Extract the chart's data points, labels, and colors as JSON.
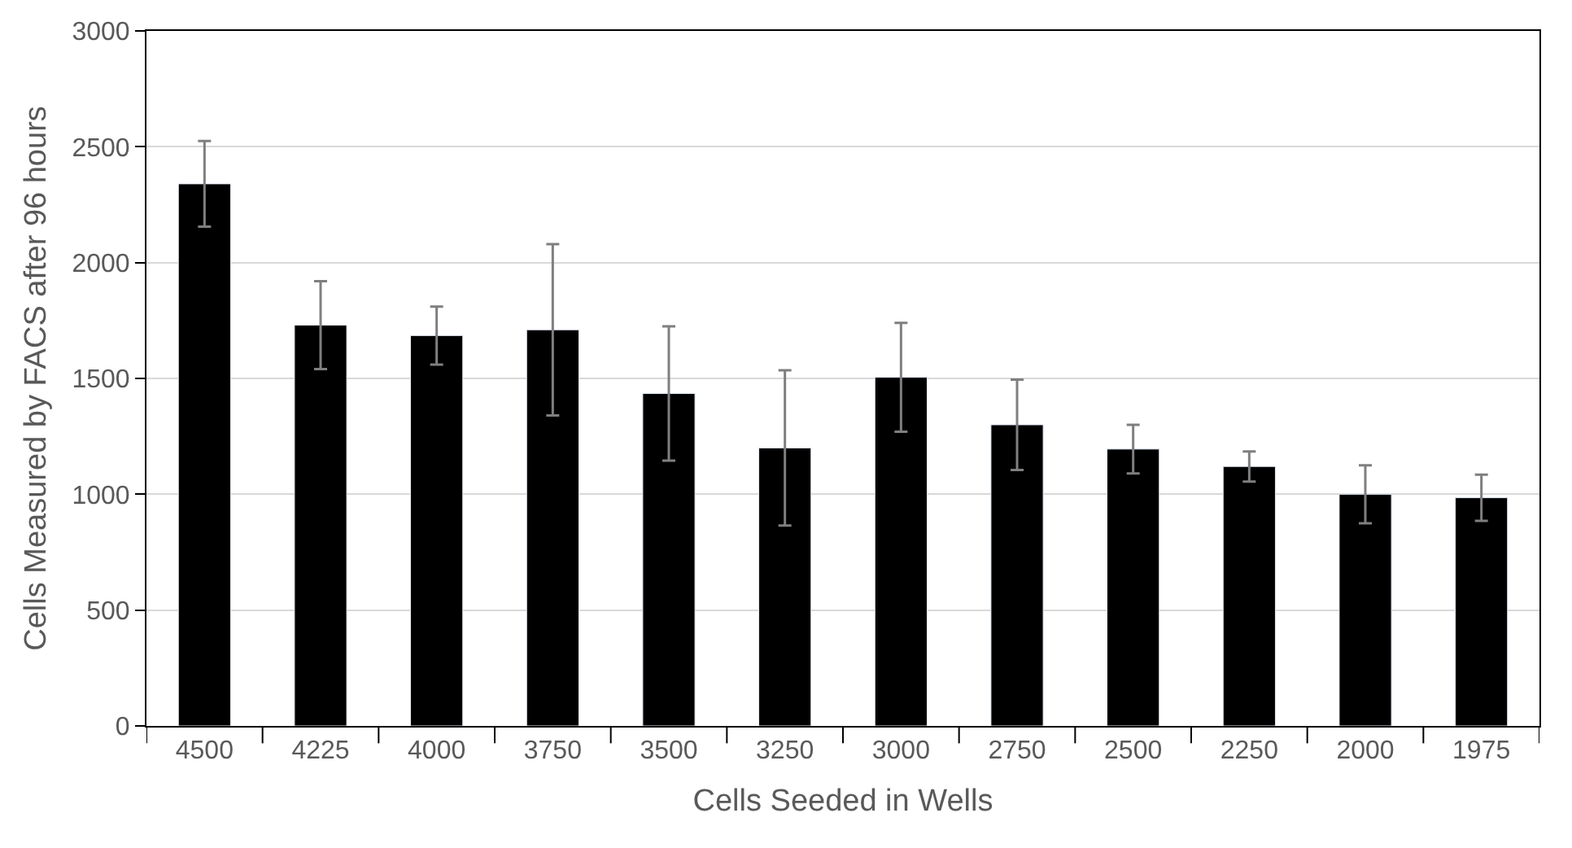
{
  "chart_data": {
    "type": "bar",
    "xlabel": "Cells Seeded in Wells",
    "ylabel": "Cells Measured by FACS after 96 hours",
    "categories": [
      "4500",
      "4225",
      "4000",
      "3750",
      "3500",
      "3250",
      "3000",
      "2750",
      "2500",
      "2250",
      "2000",
      "1975"
    ],
    "values": [
      2340,
      1730,
      1685,
      1710,
      1435,
      1200,
      1505,
      1300,
      1195,
      1120,
      1000,
      985
    ],
    "errors": [
      185,
      190,
      125,
      370,
      290,
      335,
      235,
      195,
      105,
      65,
      125,
      100
    ],
    "color": "#000000",
    "ylim": [
      0,
      3000
    ],
    "yticks": [
      0,
      500,
      1000,
      1500,
      2000,
      2500,
      3000
    ],
    "grid": "y"
  }
}
